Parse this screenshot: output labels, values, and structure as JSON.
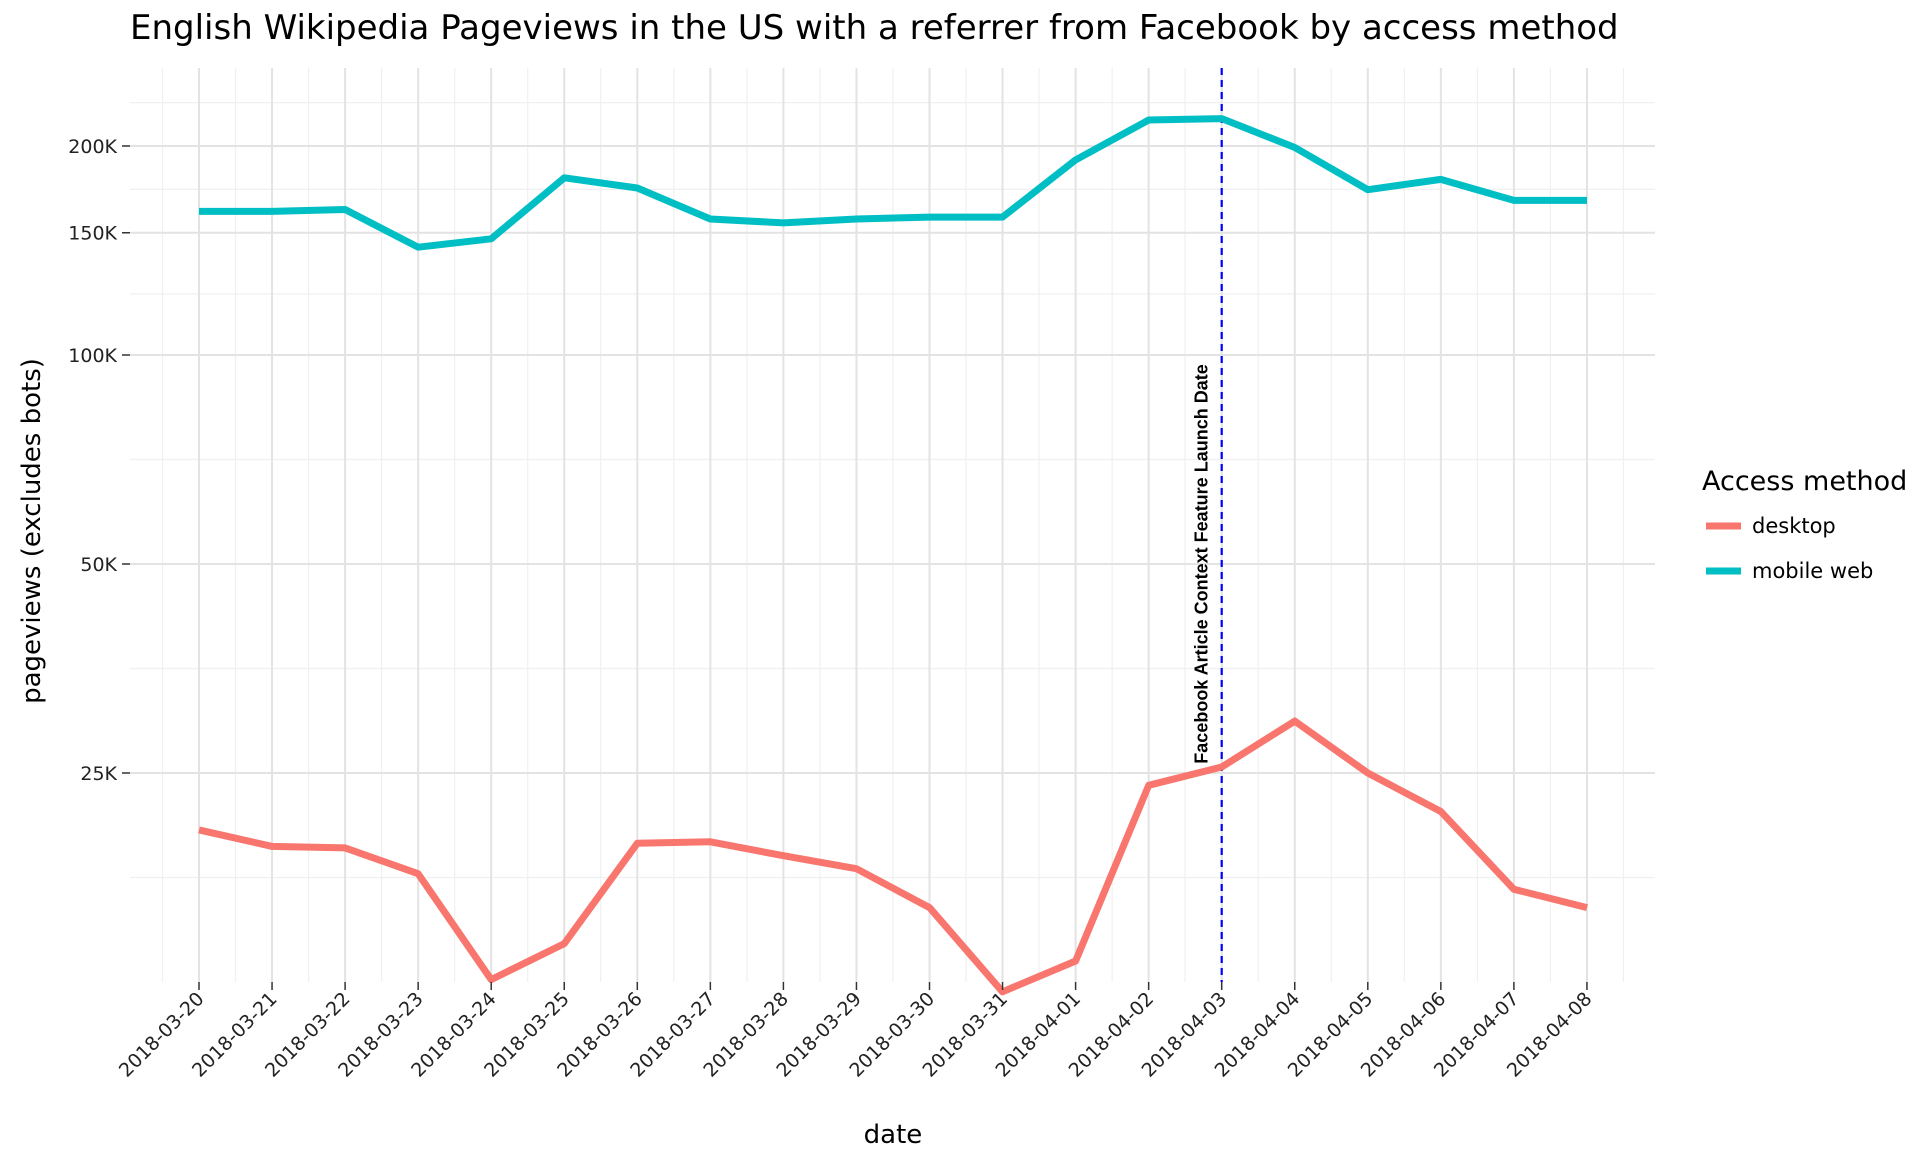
{
  "chart_data": {
    "type": "line",
    "title": "English Wikipedia Pageviews in the US with a referrer from Facebook by access method",
    "xlabel": "date",
    "ylabel": "pageviews (excludes bots)",
    "y_scale": "log",
    "y_ticks": [
      25000,
      50000,
      100000,
      150000,
      200000
    ],
    "y_tick_labels": [
      "25K",
      "50K",
      "100K",
      "150K",
      "200K"
    ],
    "grid": true,
    "legend_position": "right",
    "legend_title": "Access method",
    "x": [
      "2018-03-20",
      "2018-03-21",
      "2018-03-22",
      "2018-03-23",
      "2018-03-24",
      "2018-03-25",
      "2018-03-26",
      "2018-03-27",
      "2018-03-28",
      "2018-03-29",
      "2018-03-30",
      "2018-03-31",
      "2018-04-01",
      "2018-04-02",
      "2018-04-03",
      "2018-04-04",
      "2018-04-05",
      "2018-04-06",
      "2018-04-07",
      "2018-04-08"
    ],
    "series": [
      {
        "name": "desktop",
        "color": "#F8766D",
        "values": [
          20700,
          19600,
          19500,
          17900,
          12600,
          14200,
          19800,
          19900,
          19000,
          18200,
          16000,
          12100,
          13400,
          24000,
          25500,
          29700,
          25000,
          22000,
          17000,
          16000
        ]
      },
      {
        "name": "mobile web",
        "color": "#00BFC4",
        "values": [
          161000,
          161000,
          162000,
          143000,
          147000,
          180000,
          174000,
          157000,
          155000,
          157000,
          158000,
          158000,
          191000,
          218000,
          219000,
          199000,
          173000,
          179000,
          167000,
          167000
        ]
      }
    ],
    "annotations": [
      {
        "type": "vline",
        "x": "2018-04-03",
        "color": "#0000FF",
        "style": "dashed",
        "text": "Facebook Article Context Feature Launch Date"
      }
    ]
  }
}
